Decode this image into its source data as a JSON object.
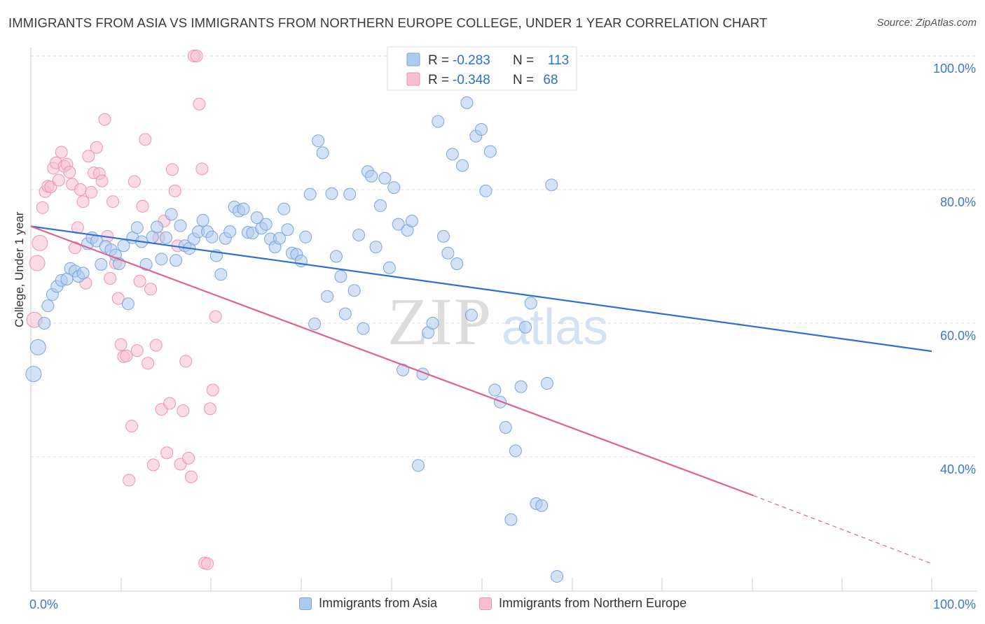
{
  "header": {
    "title": "IMMIGRANTS FROM ASIA VS IMMIGRANTS FROM NORTHERN EUROPE COLLEGE, UNDER 1 YEAR CORRELATION CHART",
    "source": "Source: ZipAtlas.com"
  },
  "watermark": {
    "zip": "ZIP",
    "atlas": "atlas"
  },
  "legend_top": {
    "rows": [
      {
        "r_label": "R =",
        "r_value": "-0.283",
        "n_label": "N =",
        "n_value": "113"
      },
      {
        "r_label": "R =",
        "r_value": "-0.348",
        "n_label": "N =",
        "n_value": "68"
      }
    ]
  },
  "chart_data": {
    "type": "scatter",
    "ylabel": "College, Under 1 year",
    "xlim": [
      0,
      100
    ],
    "ylim": [
      20,
      100
    ],
    "x_tick_labels": [
      "0.0%",
      "100.0%"
    ],
    "y_tick_values": [
      40,
      60,
      80,
      100
    ],
    "y_tick_labels": [
      "40.0%",
      "60.0%",
      "80.0%",
      "100.0%"
    ],
    "grid": true,
    "legend_position": "top-center",
    "colors": {
      "asia_fill": "#aecbee",
      "asia_stroke": "#7aa6dc",
      "asia_line": "#2d6fd2",
      "europe_fill": "#f7bfd1",
      "europe_stroke": "#ef93b3",
      "europe_line": "#e0618f",
      "grid": "#dddddd",
      "tick_label": "#3b78d0",
      "legend_value": "#2d6fd2"
    },
    "series": [
      {
        "name": "Immigrants from Asia",
        "r": -0.283,
        "n": 113,
        "trend": {
          "x": [
            0,
            100
          ],
          "y": [
            74.5,
            55.8
          ]
        },
        "points": [
          [
            0.3,
            52.4
          ],
          [
            0.8,
            56.4
          ],
          [
            1.5,
            60.0
          ],
          [
            1.9,
            62.6
          ],
          [
            2.4,
            64.3
          ],
          [
            2.9,
            65.5
          ],
          [
            3.4,
            66.4
          ],
          [
            4.0,
            66.6
          ],
          [
            4.4,
            68.2
          ],
          [
            4.9,
            67.8
          ],
          [
            5.3,
            67.0
          ],
          [
            5.8,
            67.5
          ],
          [
            6.3,
            71.9
          ],
          [
            6.8,
            72.8
          ],
          [
            7.3,
            72.3
          ],
          [
            7.8,
            68.8
          ],
          [
            8.3,
            71.5
          ],
          [
            8.9,
            71.0
          ],
          [
            9.4,
            70.2
          ],
          [
            9.8,
            68.9
          ],
          [
            10.3,
            71.6
          ],
          [
            10.8,
            62.9
          ],
          [
            11.3,
            72.8
          ],
          [
            11.8,
            74.3
          ],
          [
            12.3,
            72.2
          ],
          [
            12.8,
            68.8
          ],
          [
            13.5,
            72.9
          ],
          [
            14.0,
            74.4
          ],
          [
            14.5,
            69.6
          ],
          [
            15.0,
            72.8
          ],
          [
            15.6,
            76.3
          ],
          [
            16.1,
            69.4
          ],
          [
            16.6,
            74.6
          ],
          [
            17.1,
            71.6
          ],
          [
            17.6,
            71.2
          ],
          [
            18.1,
            72.6
          ],
          [
            18.6,
            73.7
          ],
          [
            19.1,
            75.4
          ],
          [
            19.6,
            73.7
          ],
          [
            20.1,
            72.9
          ],
          [
            20.6,
            70.1
          ],
          [
            21.1,
            67.3
          ],
          [
            21.6,
            72.7
          ],
          [
            22.1,
            73.7
          ],
          [
            22.6,
            77.4
          ],
          [
            23.1,
            76.8
          ],
          [
            23.6,
            77.1
          ],
          [
            24.1,
            73.6
          ],
          [
            24.6,
            73.5
          ],
          [
            25.1,
            75.8
          ],
          [
            25.6,
            74.2
          ],
          [
            26.1,
            74.8
          ],
          [
            26.6,
            72.6
          ],
          [
            27.1,
            71.4
          ],
          [
            27.6,
            72.7
          ],
          [
            28.1,
            77.1
          ],
          [
            28.5,
            74.0
          ],
          [
            29.0,
            70.5
          ],
          [
            29.5,
            70.3
          ],
          [
            30.0,
            69.3
          ],
          [
            30.5,
            72.9
          ],
          [
            31.0,
            79.3
          ],
          [
            31.5,
            59.9
          ],
          [
            31.9,
            87.3
          ],
          [
            32.4,
            85.5
          ],
          [
            32.9,
            64.0
          ],
          [
            33.4,
            79.4
          ],
          [
            33.9,
            70.0
          ],
          [
            34.4,
            67.0
          ],
          [
            34.9,
            61.4
          ],
          [
            35.4,
            79.3
          ],
          [
            35.9,
            64.9
          ],
          [
            36.4,
            73.2
          ],
          [
            36.9,
            59.2
          ],
          [
            37.4,
            82.7
          ],
          [
            37.8,
            82.0
          ],
          [
            38.3,
            71.4
          ],
          [
            38.8,
            77.6
          ],
          [
            39.3,
            81.7
          ],
          [
            39.8,
            68.3
          ],
          [
            40.3,
            80.3
          ],
          [
            40.8,
            74.8
          ],
          [
            41.3,
            53.0
          ],
          [
            41.8,
            73.9
          ],
          [
            42.3,
            75.3
          ],
          [
            43.0,
            38.7
          ],
          [
            43.5,
            52.4
          ],
          [
            44.1,
            58.6
          ],
          [
            44.6,
            60.0
          ],
          [
            45.2,
            90.2
          ],
          [
            45.8,
            73.0
          ],
          [
            46.3,
            70.5
          ],
          [
            46.8,
            85.3
          ],
          [
            47.3,
            68.9
          ],
          [
            47.9,
            83.6
          ],
          [
            48.4,
            93.0
          ],
          [
            48.9,
            61.2
          ],
          [
            49.4,
            88.0
          ],
          [
            50.0,
            89.0
          ],
          [
            50.5,
            79.8
          ],
          [
            51.0,
            85.7
          ],
          [
            51.5,
            50.0
          ],
          [
            52.1,
            48.2
          ],
          [
            52.7,
            44.4
          ],
          [
            53.3,
            30.6
          ],
          [
            53.8,
            40.9
          ],
          [
            54.4,
            50.5
          ],
          [
            54.9,
            59.4
          ],
          [
            55.5,
            63.0
          ],
          [
            56.1,
            33.0
          ],
          [
            56.7,
            32.7
          ],
          [
            57.3,
            51.0
          ],
          [
            57.8,
            80.7
          ],
          [
            58.4,
            22.1
          ]
        ]
      },
      {
        "name": "Immigrants from Northern Europe",
        "r": -0.348,
        "n": 68,
        "trend": {
          "x": [
            0,
            80.2
          ],
          "y": [
            74.5,
            34.2
          ]
        },
        "trend_dashed": {
          "x": [
            80.2,
            100
          ],
          "y": [
            34.2,
            24.0
          ]
        },
        "points": [
          [
            0.4,
            60.5
          ],
          [
            0.7,
            69.0
          ],
          [
            1.0,
            72.0
          ],
          [
            1.3,
            77.3
          ],
          [
            1.6,
            79.7
          ],
          [
            1.9,
            80.5
          ],
          [
            2.2,
            80.4
          ],
          [
            2.5,
            83.2
          ],
          [
            2.8,
            84.0
          ],
          [
            3.1,
            81.4
          ],
          [
            3.4,
            85.6
          ],
          [
            3.7,
            83.5
          ],
          [
            4.0,
            83.8
          ],
          [
            4.3,
            82.6
          ],
          [
            4.6,
            80.8
          ],
          [
            4.9,
            71.3
          ],
          [
            5.2,
            74.3
          ],
          [
            5.5,
            80.0
          ],
          [
            5.8,
            78.2
          ],
          [
            6.1,
            66.0
          ],
          [
            6.4,
            85.0
          ],
          [
            6.7,
            79.6
          ],
          [
            7.0,
            82.5
          ],
          [
            7.3,
            86.3
          ],
          [
            7.6,
            82.4
          ],
          [
            7.9,
            81.3
          ],
          [
            8.2,
            90.5
          ],
          [
            8.5,
            73.0
          ],
          [
            8.8,
            66.7
          ],
          [
            9.1,
            78.2
          ],
          [
            9.4,
            69.0
          ],
          [
            9.7,
            63.7
          ],
          [
            10.0,
            56.8
          ],
          [
            10.3,
            55.0
          ],
          [
            10.6,
            55.1
          ],
          [
            10.9,
            36.5
          ],
          [
            11.2,
            44.6
          ],
          [
            11.5,
            81.2
          ],
          [
            11.8,
            55.9
          ],
          [
            12.1,
            66.3
          ],
          [
            12.4,
            77.5
          ],
          [
            12.7,
            87.5
          ],
          [
            13.0,
            54.0
          ],
          [
            13.3,
            65.1
          ],
          [
            13.6,
            38.8
          ],
          [
            13.9,
            56.7
          ],
          [
            14.2,
            72.8
          ],
          [
            14.5,
            47.1
          ],
          [
            14.8,
            75.3
          ],
          [
            15.1,
            40.6
          ],
          [
            15.4,
            48.0
          ],
          [
            15.7,
            83.0
          ],
          [
            16.0,
            79.8
          ],
          [
            16.3,
            71.6
          ],
          [
            16.6,
            38.9
          ],
          [
            16.9,
            46.9
          ],
          [
            17.2,
            54.3
          ],
          [
            17.5,
            39.8
          ],
          [
            17.8,
            37.0
          ],
          [
            18.1,
            100.0
          ],
          [
            18.4,
            100.0
          ],
          [
            18.7,
            92.8
          ],
          [
            19.0,
            83.1
          ],
          [
            19.3,
            24.1
          ],
          [
            19.6,
            24.0
          ],
          [
            19.9,
            47.2
          ],
          [
            20.2,
            50.0
          ],
          [
            20.5,
            61.0
          ]
        ]
      }
    ]
  },
  "legend_bottom": [
    {
      "label": "Immigrants from Asia"
    },
    {
      "label": "Immigrants from Northern Europe"
    }
  ]
}
